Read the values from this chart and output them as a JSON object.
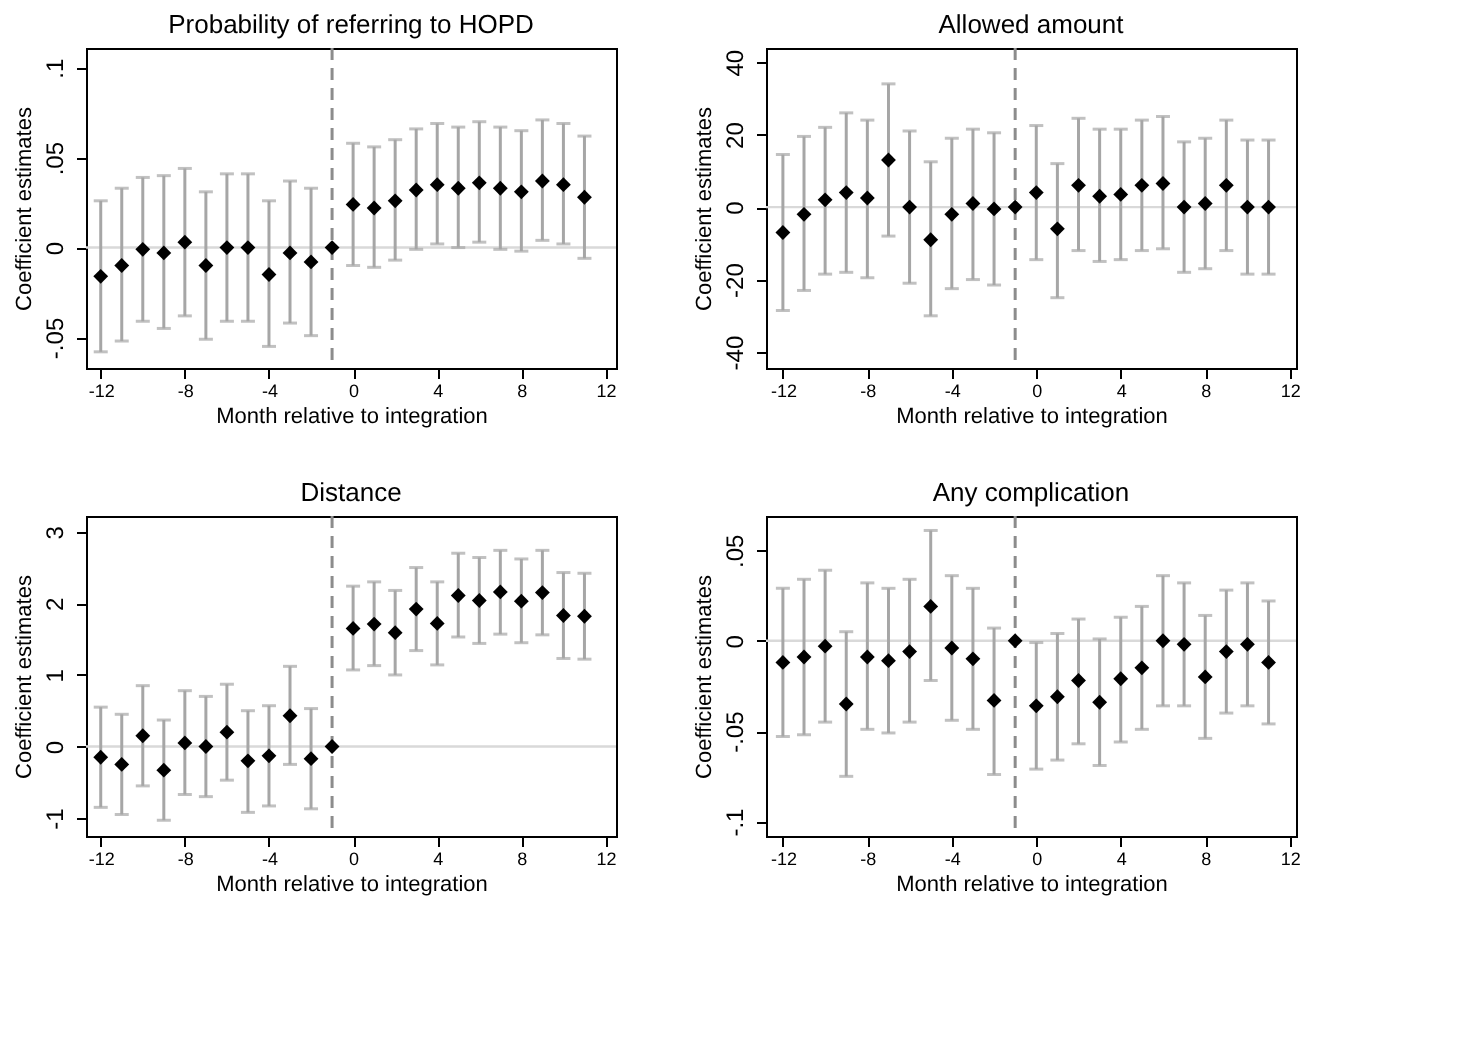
{
  "chart_data": [
    {
      "type": "scatter",
      "title": "Probability of referring to HOPD",
      "xlabel": "Month relative to integration",
      "ylabel": "Coefficient estimates",
      "marker": "diamond",
      "grid": false,
      "color": "#000000",
      "x": [
        -12,
        -11,
        -10,
        -9,
        -8,
        -7,
        -6,
        -5,
        -4,
        -3,
        -2,
        -1,
        0,
        1,
        2,
        3,
        4,
        5,
        6,
        7,
        8,
        9,
        10,
        11
      ],
      "values": [
        -0.016,
        -0.01,
        -0.001,
        -0.003,
        0.003,
        -0.01,
        0.0,
        0.0,
        -0.015,
        -0.003,
        -0.008,
        0,
        0.024,
        0.022,
        0.026,
        0.032,
        0.035,
        0.033,
        0.036,
        0.033,
        0.031,
        0.037,
        0.035,
        0.028
      ],
      "errors": [
        [
          -0.058,
          0.026
        ],
        [
          -0.052,
          0.033
        ],
        [
          -0.041,
          0.039
        ],
        [
          -0.045,
          0.04
        ],
        [
          -0.038,
          0.044
        ],
        [
          -0.051,
          0.031
        ],
        [
          -0.041,
          0.041
        ],
        [
          -0.041,
          0.041
        ],
        [
          -0.055,
          0.026
        ],
        [
          -0.042,
          0.037
        ],
        [
          -0.049,
          0.033
        ],
        null,
        [
          -0.01,
          0.058
        ],
        [
          -0.011,
          0.056
        ],
        [
          -0.007,
          0.06
        ],
        [
          -0.001,
          0.066
        ],
        [
          0.002,
          0.069
        ],
        [
          0.0,
          0.067
        ],
        [
          0.003,
          0.07
        ],
        [
          -0.001,
          0.067
        ],
        [
          -0.002,
          0.065
        ],
        [
          0.004,
          0.071
        ],
        [
          0.002,
          0.069
        ],
        [
          -0.006,
          0.062
        ]
      ],
      "xlim": [
        -12.7,
        12.5
      ],
      "xticks": [
        -12,
        -8,
        -4,
        0,
        4,
        8,
        12
      ],
      "ylim": [
        -0.067,
        0.111
      ],
      "yticks": [
        {
          "value": -0.05,
          "label": "-.05"
        },
        0,
        {
          "value": 0.05,
          "label": ".05"
        },
        {
          "value": 0.1,
          "label": ".1"
        }
      ],
      "ref_lines": [
        {
          "axis": "y",
          "value": 0,
          "color": "#d9d9d9",
          "line_style": "solid"
        },
        {
          "axis": "x",
          "value": -1,
          "color": "#8c8c8c",
          "line_style": "dashed"
        }
      ]
    },
    {
      "type": "scatter",
      "title": "Allowed amount",
      "xlabel": "Month relative to integration",
      "ylabel": "Coefficient estimates",
      "marker": "diamond",
      "grid": false,
      "color": "#000000",
      "x": [
        -12,
        -11,
        -10,
        -9,
        -8,
        -7,
        -6,
        -5,
        -4,
        -3,
        -2,
        -1,
        0,
        1,
        2,
        3,
        4,
        5,
        6,
        7,
        8,
        9,
        10,
        11
      ],
      "values": [
        -7,
        -2,
        2,
        4,
        2.5,
        13,
        0,
        -9,
        -2,
        1,
        -0.5,
        0,
        4,
        -6,
        6,
        3,
        3.5,
        6,
        6.5,
        0,
        1,
        6,
        0,
        0
      ],
      "errors": [
        [
          -28.5,
          14.5
        ],
        [
          -23,
          19.5
        ],
        [
          -18.5,
          22
        ],
        [
          -18,
          26
        ],
        [
          -19.5,
          24
        ],
        [
          -8,
          34
        ],
        [
          -21,
          21
        ],
        [
          -30,
          12.5
        ],
        [
          -22.5,
          19
        ],
        [
          -20,
          21.5
        ],
        [
          -21.5,
          20.5
        ],
        null,
        [
          -14.5,
          22.5
        ],
        [
          -25,
          12
        ],
        [
          -12,
          24.5
        ],
        [
          -15,
          21.5
        ],
        [
          -14.5,
          21.5
        ],
        [
          -12,
          24
        ],
        [
          -11.5,
          25
        ],
        [
          -18,
          18
        ],
        [
          -17,
          19
        ],
        [
          -12,
          24
        ],
        [
          -18.5,
          18.5
        ],
        [
          -18.5,
          18.5
        ]
      ],
      "xlim": [
        -12.8,
        12.3
      ],
      "xticks": [
        -12,
        -8,
        -4,
        0,
        4,
        8,
        12
      ],
      "ylim": [
        -44.4,
        43.9
      ],
      "yticks": [
        -40,
        -20,
        0,
        20,
        40
      ],
      "ref_lines": [
        {
          "axis": "y",
          "value": 0,
          "color": "#d9d9d9",
          "line_style": "solid"
        },
        {
          "axis": "x",
          "value": -1,
          "color": "#8c8c8c",
          "line_style": "dashed"
        }
      ]
    },
    {
      "type": "scatter",
      "title": "Distance",
      "xlabel": "Month relative to integration",
      "ylabel": "Coefficient estimates",
      "marker": "diamond",
      "grid": false,
      "color": "#000000",
      "x": [
        -12,
        -11,
        -10,
        -9,
        -8,
        -7,
        -6,
        -5,
        -4,
        -3,
        -2,
        -1,
        0,
        1,
        2,
        3,
        4,
        5,
        6,
        7,
        8,
        9,
        10,
        11
      ],
      "values": [
        -0.15,
        -0.25,
        0.15,
        -0.33,
        0.05,
        0,
        0.2,
        -0.2,
        -0.13,
        0.43,
        -0.17,
        0,
        1.65,
        1.71,
        1.59,
        1.92,
        1.72,
        2.11,
        2.04,
        2.16,
        2.03,
        2.15,
        1.83,
        1.82
      ],
      "errors": [
        [
          -0.85,
          0.55
        ],
        [
          -0.95,
          0.45
        ],
        [
          -0.55,
          0.85
        ],
        [
          -1.03,
          0.37
        ],
        [
          -0.67,
          0.78
        ],
        [
          -0.7,
          0.7
        ],
        [
          -0.47,
          0.87
        ],
        [
          -0.92,
          0.5
        ],
        [
          -0.83,
          0.57
        ],
        [
          -0.25,
          1.12
        ],
        [
          -0.87,
          0.53
        ],
        null,
        [
          1.07,
          2.24
        ],
        [
          1.13,
          2.3
        ],
        [
          1.0,
          2.18
        ],
        [
          1.34,
          2.5
        ],
        [
          1.14,
          2.3
        ],
        [
          1.53,
          2.7
        ],
        [
          1.44,
          2.64
        ],
        [
          1.57,
          2.74
        ],
        [
          1.45,
          2.62
        ],
        [
          1.56,
          2.74
        ],
        [
          1.23,
          2.43
        ],
        [
          1.22,
          2.42
        ]
      ],
      "xlim": [
        -12.7,
        12.5
      ],
      "xticks": [
        -12,
        -8,
        -4,
        0,
        4,
        8,
        12
      ],
      "ylim": [
        -1.25,
        3.22
      ],
      "yticks": [
        -1,
        0,
        1,
        2,
        3
      ],
      "ref_lines": [
        {
          "axis": "y",
          "value": 0,
          "color": "#d9d9d9",
          "line_style": "solid"
        },
        {
          "axis": "x",
          "value": -1,
          "color": "#8c8c8c",
          "line_style": "dashed"
        }
      ]
    },
    {
      "type": "scatter",
      "title": "Any complication",
      "xlabel": "Month relative to integration",
      "ylabel": "Coefficient estimates",
      "marker": "diamond",
      "grid": false,
      "color": "#000000",
      "x": [
        -12,
        -11,
        -10,
        -9,
        -8,
        -7,
        -6,
        -5,
        -4,
        -3,
        -2,
        -1,
        0,
        1,
        2,
        3,
        4,
        5,
        6,
        7,
        8,
        9,
        10,
        11
      ],
      "values": [
        -0.012,
        -0.009,
        -0.003,
        -0.035,
        -0.009,
        -0.011,
        -0.006,
        0.019,
        -0.004,
        -0.01,
        -0.033,
        0,
        -0.036,
        -0.031,
        -0.022,
        -0.034,
        -0.021,
        -0.015,
        0,
        -0.002,
        -0.02,
        -0.006,
        -0.002,
        -0.012
      ],
      "errors": [
        [
          -0.053,
          0.029
        ],
        [
          -0.052,
          0.034
        ],
        [
          -0.045,
          0.039
        ],
        [
          -0.075,
          0.005
        ],
        [
          -0.049,
          0.032
        ],
        [
          -0.051,
          0.029
        ],
        [
          -0.045,
          0.034
        ],
        [
          -0.022,
          0.061
        ],
        [
          -0.044,
          0.036
        ],
        [
          -0.049,
          0.029
        ],
        [
          -0.074,
          0.007
        ],
        null,
        [
          -0.071,
          -0.001
        ],
        [
          -0.066,
          0.004
        ],
        [
          -0.057,
          0.012
        ],
        [
          -0.069,
          0.001
        ],
        [
          -0.056,
          0.013
        ],
        [
          -0.049,
          0.019
        ],
        [
          -0.036,
          0.036
        ],
        [
          -0.036,
          0.032
        ],
        [
          -0.054,
          0.014
        ],
        [
          -0.04,
          0.028
        ],
        [
          -0.036,
          0.032
        ],
        [
          -0.046,
          0.022
        ]
      ],
      "xlim": [
        -12.8,
        12.3
      ],
      "xticks": [
        -12,
        -8,
        -4,
        0,
        4,
        8,
        12
      ],
      "ylim": [
        -0.108,
        0.069
      ],
      "yticks": [
        {
          "value": -0.1,
          "label": "-.1"
        },
        {
          "value": -0.05,
          "label": "-.05"
        },
        0,
        {
          "value": 0.05,
          "label": ".05"
        }
      ],
      "ref_lines": [
        {
          "axis": "y",
          "value": 0,
          "color": "#d9d9d9",
          "line_style": "solid"
        },
        {
          "axis": "x",
          "value": -1,
          "color": "#8c8c8c",
          "line_style": "dashed"
        }
      ]
    }
  ]
}
